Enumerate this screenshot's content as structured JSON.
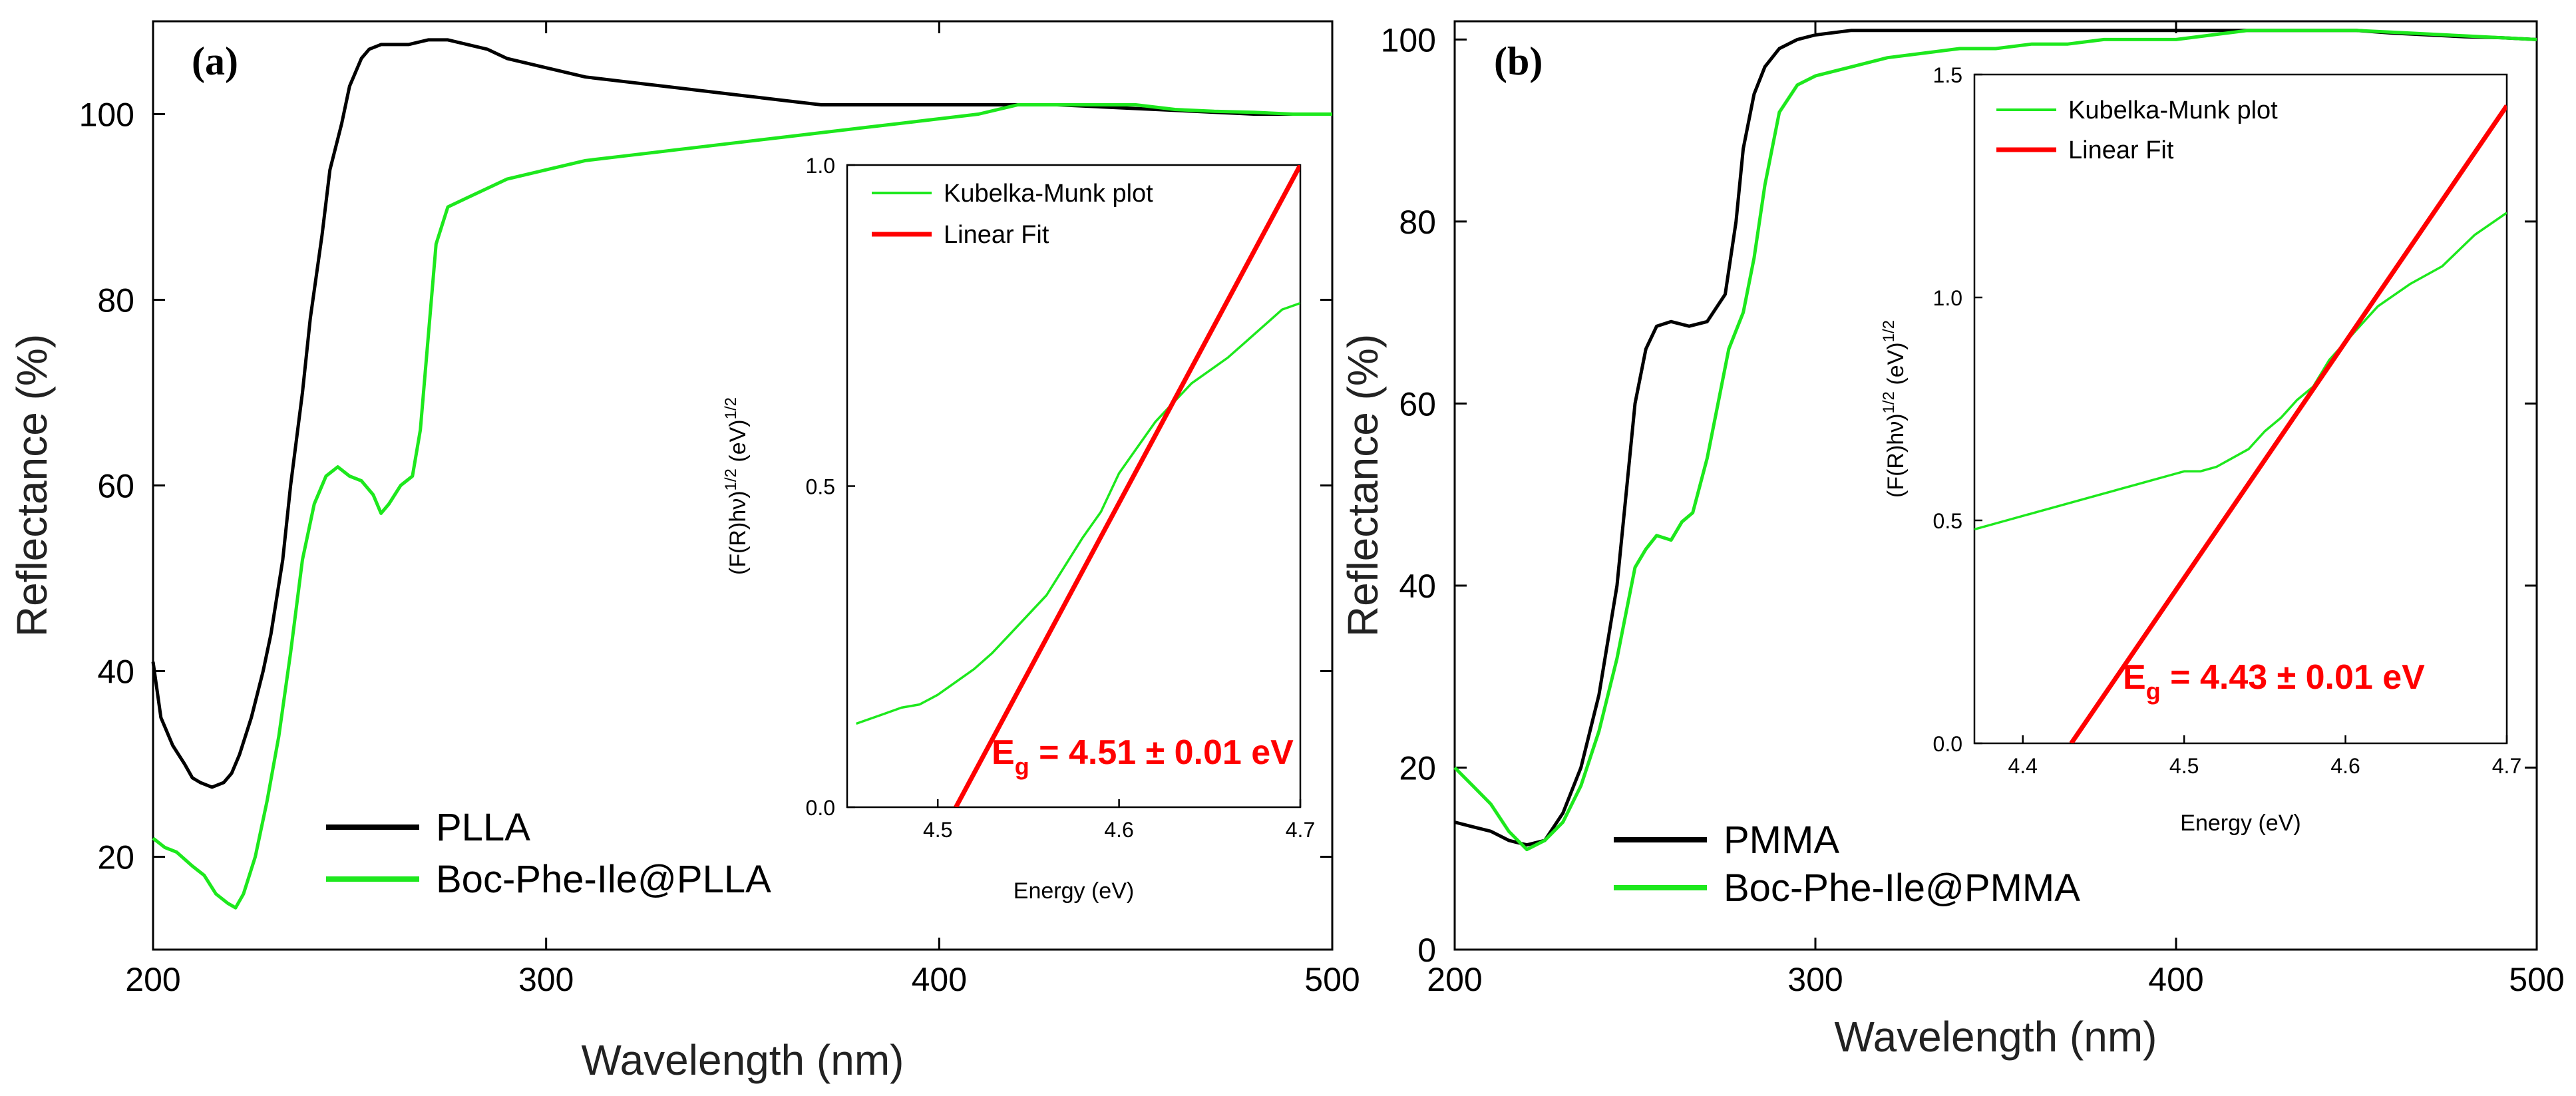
{
  "chart_data": [
    {
      "panel": "(a)",
      "type": "line",
      "xlabel": "Wavelength (nm)",
      "ylabel": "Reflectance (%)",
      "xlim": [
        200,
        500
      ],
      "ylim": [
        10,
        110
      ],
      "xticks": [
        200,
        300,
        400,
        500
      ],
      "yticks": [
        20,
        40,
        60,
        80,
        100
      ],
      "legend_position": "bottom-left",
      "series": [
        {
          "name": "PLLA",
          "color": "#000000",
          "x": [
            200,
            202,
            205,
            208,
            210,
            212,
            215,
            218,
            220,
            222,
            225,
            228,
            230,
            233,
            235,
            238,
            240,
            243,
            245,
            248,
            250,
            253,
            255,
            258,
            260,
            265,
            270,
            275,
            280,
            285,
            290,
            300,
            310,
            320,
            330,
            340,
            350,
            360,
            370,
            380,
            390,
            400,
            410,
            420,
            430,
            440,
            450,
            460,
            470,
            480,
            490,
            500
          ],
          "y": [
            41,
            35,
            32,
            30,
            28.5,
            28,
            27.5,
            28,
            29,
            31,
            35,
            40,
            44,
            52,
            60,
            70,
            78,
            87,
            94,
            99,
            103,
            106,
            107,
            107.5,
            107.5,
            107.5,
            108,
            108,
            107.5,
            107,
            106,
            105,
            104,
            103.5,
            103,
            102.5,
            102,
            101.5,
            101,
            101,
            101,
            101,
            101,
            101,
            101,
            100.8,
            100.6,
            100.4,
            100.2,
            100,
            100,
            100
          ]
        },
        {
          "name": "Boc-Phe-Ile@PLLA",
          "color": "#1de81d",
          "x": [
            200,
            203,
            206,
            210,
            213,
            216,
            219,
            221,
            223,
            226,
            229,
            232,
            235,
            238,
            241,
            244,
            247,
            250,
            253,
            256,
            258,
            260,
            263,
            266,
            268,
            270,
            272,
            275,
            280,
            285,
            290,
            300,
            310,
            320,
            330,
            340,
            350,
            360,
            370,
            380,
            390,
            400,
            410,
            420,
            430,
            440,
            450,
            460,
            470,
            480,
            490,
            500
          ],
          "y": [
            22,
            21,
            20.5,
            19,
            18,
            16,
            15,
            14.5,
            16,
            20,
            26,
            33,
            42,
            52,
            58,
            61,
            62,
            61,
            60.5,
            59,
            57,
            58,
            60,
            61,
            66,
            76,
            86,
            90,
            91,
            92,
            93,
            94,
            95,
            95.5,
            96,
            96.5,
            97,
            97.5,
            98,
            98.5,
            99,
            99.5,
            100,
            101,
            101,
            101,
            101,
            100.5,
            100.3,
            100.2,
            100,
            100
          ]
        }
      ],
      "inset": {
        "type": "line",
        "xlabel": "Energy (eV)",
        "ylabel": "(F(R)hν)^1/2 (eV)^1/2",
        "ylabel_main": "(F(R)hν)",
        "ylabel_exp1": "1/2",
        "ylabel_mid": " (eV)",
        "ylabel_exp2": "1/2",
        "xlim": [
          4.45,
          4.7
        ],
        "ylim": [
          0.0,
          1.0
        ],
        "xticks": [
          "4.5",
          "4.6",
          "4.7"
        ],
        "yticks": [
          "0.0",
          "0.5",
          "1.0"
        ],
        "legend_position": "top-left",
        "series": [
          {
            "name": "Kubelka-Munk plot",
            "color": "#1de81d",
            "x": [
              4.455,
              4.47,
              4.48,
              4.49,
              4.5,
              4.51,
              4.52,
              4.53,
              4.54,
              4.55,
              4.56,
              4.57,
              4.58,
              4.59,
              4.6,
              4.61,
              4.62,
              4.63,
              4.64,
              4.65,
              4.66,
              4.67,
              4.68,
              4.69,
              4.7
            ],
            "y": [
              0.13,
              0.145,
              0.155,
              0.16,
              0.175,
              0.195,
              0.215,
              0.24,
              0.27,
              0.3,
              0.33,
              0.375,
              0.42,
              0.46,
              0.52,
              0.56,
              0.6,
              0.63,
              0.66,
              0.68,
              0.7,
              0.725,
              0.75,
              0.775,
              0.785
            ]
          },
          {
            "name": "Linear Fit",
            "color": "#ff0000",
            "x": [
              4.51,
              4.7
            ],
            "y": [
              0.0,
              1.0
            ]
          }
        ],
        "annotation_prefix": "E",
        "annotation_subscript": "g",
        "annotation_value": " = 4.51 ± 0.01 eV"
      }
    },
    {
      "panel": "(b)",
      "type": "line",
      "xlabel": "Wavelength (nm)",
      "ylabel": "Reflectance (%)",
      "xlim": [
        200,
        500
      ],
      "ylim": [
        0,
        102
      ],
      "xticks": [
        200,
        300,
        400,
        500
      ],
      "yticks": [
        0,
        20,
        40,
        60,
        80,
        100
      ],
      "legend_position": "bottom-left",
      "series": [
        {
          "name": "PMMA",
          "color": "#000000",
          "x": [
            200,
            205,
            210,
            215,
            220,
            225,
            230,
            235,
            240,
            245,
            248,
            250,
            253,
            256,
            260,
            265,
            270,
            275,
            278,
            280,
            283,
            286,
            290,
            295,
            300,
            310,
            320,
            330,
            340,
            350,
            360,
            370,
            380,
            390,
            400,
            410,
            420,
            430,
            440,
            450,
            460,
            470,
            480,
            490,
            500
          ],
          "y": [
            14,
            13.5,
            13,
            12,
            11.5,
            12,
            15,
            20,
            28,
            40,
            52,
            60,
            66,
            68.5,
            69,
            68.5,
            69,
            72,
            80,
            88,
            94,
            97,
            99,
            100,
            100.5,
            101,
            101,
            101,
            101,
            101,
            101,
            101,
            101,
            101,
            101,
            101,
            101,
            101,
            101,
            101,
            100.7,
            100.5,
            100.3,
            100.2,
            100
          ]
        },
        {
          "name": "Boc-Phe-Ile@PMMA",
          "color": "#1de81d",
          "x": [
            200,
            205,
            210,
            215,
            220,
            225,
            230,
            235,
            240,
            245,
            250,
            253,
            256,
            260,
            263,
            266,
            270,
            273,
            276,
            280,
            283,
            286,
            290,
            295,
            300,
            310,
            320,
            330,
            340,
            350,
            360,
            370,
            380,
            390,
            400,
            410,
            420,
            430,
            440,
            450,
            460,
            470,
            480,
            490,
            500
          ],
          "y": [
            20,
            18,
            16,
            13,
            11,
            12,
            14,
            18,
            24,
            32,
            42,
            44,
            45.5,
            45,
            47,
            48,
            54,
            60,
            66,
            70,
            76,
            84,
            92,
            95,
            96,
            97,
            98,
            98.5,
            99,
            99,
            99.5,
            99.5,
            100,
            100,
            100,
            100.5,
            101,
            101,
            101,
            101,
            100.8,
            100.6,
            100.4,
            100.2,
            100
          ]
        }
      ],
      "inset": {
        "type": "line",
        "xlabel": "Energy (eV)",
        "ylabel": "(F(R)hν)^1/2 (eV)^1/2",
        "ylabel_main": "(F(R)hν)",
        "ylabel_exp1": "1/2",
        "ylabel_mid": " (eV)",
        "ylabel_exp2": "1/2",
        "xlim": [
          4.37,
          4.7
        ],
        "ylim": [
          0.0,
          1.5
        ],
        "xticks": [
          "4.4",
          "4.5",
          "4.6",
          "4.7"
        ],
        "yticks": [
          "0.0",
          "0.5",
          "1.0",
          "1.5"
        ],
        "legend_position": "top-left",
        "series": [
          {
            "name": "Kubelka-Munk plot",
            "color": "#1de81d",
            "x": [
              4.37,
              4.39,
              4.41,
              4.43,
              4.45,
              4.46,
              4.47,
              4.48,
              4.49,
              4.5,
              4.51,
              4.52,
              4.53,
              4.54,
              4.55,
              4.56,
              4.57,
              4.58,
              4.59,
              4.6,
              4.61,
              4.62,
              4.64,
              4.66,
              4.68,
              4.7
            ],
            "y": [
              0.48,
              0.5,
              0.52,
              0.54,
              0.56,
              0.57,
              0.58,
              0.59,
              0.6,
              0.61,
              0.61,
              0.62,
              0.64,
              0.66,
              0.7,
              0.73,
              0.77,
              0.8,
              0.86,
              0.9,
              0.94,
              0.98,
              1.03,
              1.07,
              1.14,
              1.19
            ]
          },
          {
            "name": "Linear Fit",
            "color": "#ff0000",
            "x": [
              4.43,
              4.7
            ],
            "y": [
              0.0,
              1.43
            ]
          }
        ],
        "annotation_prefix": "E",
        "annotation_subscript": "g",
        "annotation_value": " = 4.43 ± 0.01 eV"
      }
    }
  ]
}
